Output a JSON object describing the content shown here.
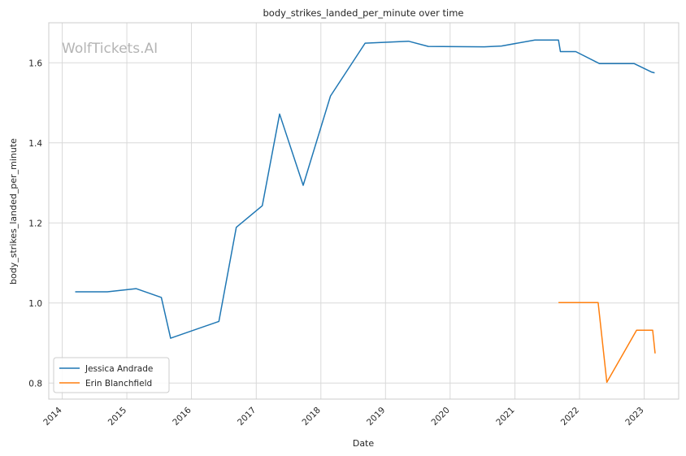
{
  "chart_data": {
    "type": "line",
    "title": "body_strikes_landed_per_minute over time",
    "xlabel": "Date",
    "ylabel": "body_strikes_landed_per_minute",
    "watermark": "WolfTickets.AI",
    "x_ticks": [
      "2014",
      "2015",
      "2016",
      "2017",
      "2018",
      "2019",
      "2020",
      "2021",
      "2022",
      "2023"
    ],
    "y_ticks": [
      "0.8",
      "1.0",
      "1.2",
      "1.4",
      "1.6"
    ],
    "xlim": [
      "2013-10-17",
      "2023-07-15"
    ],
    "ylim": [
      0.76,
      1.7
    ],
    "grid": true,
    "legend_position": "lower-left",
    "series": [
      {
        "name": "Jessica Andrade",
        "color": "#1f77b4",
        "points": [
          [
            "2014-03-15",
            1.028
          ],
          [
            "2014-09-13",
            1.028
          ],
          [
            "2015-02-22",
            1.036
          ],
          [
            "2015-07-15",
            1.014
          ],
          [
            "2015-09-05",
            0.912
          ],
          [
            "2016-06-04",
            0.954
          ],
          [
            "2016-09-10",
            1.189
          ],
          [
            "2017-02-04",
            1.243
          ],
          [
            "2017-05-13",
            1.472
          ],
          [
            "2017-09-23",
            1.294
          ],
          [
            "2018-02-24",
            1.517
          ],
          [
            "2018-09-08",
            1.649
          ],
          [
            "2019-05-11",
            1.654
          ],
          [
            "2019-08-31",
            1.641
          ],
          [
            "2020-07-12",
            1.64
          ],
          [
            "2020-10-17",
            1.642
          ],
          [
            "2021-04-24",
            1.657
          ],
          [
            "2021-09-04",
            1.657
          ],
          [
            "2021-09-15",
            1.628
          ],
          [
            "2021-12-11",
            1.628
          ],
          [
            "2022-04-23",
            1.598
          ],
          [
            "2022-11-05",
            1.598
          ],
          [
            "2023-02-11",
            1.577
          ],
          [
            "2023-03-01",
            1.575
          ]
        ]
      },
      {
        "name": "Erin Blanchfield",
        "color": "#ff7f0e",
        "points": [
          [
            "2021-09-04",
            1.001
          ],
          [
            "2022-04-16",
            1.001
          ],
          [
            "2022-06-04",
            0.802
          ],
          [
            "2022-11-19",
            0.932
          ],
          [
            "2023-02-18",
            0.932
          ],
          [
            "2023-03-04",
            0.874
          ]
        ]
      }
    ]
  }
}
